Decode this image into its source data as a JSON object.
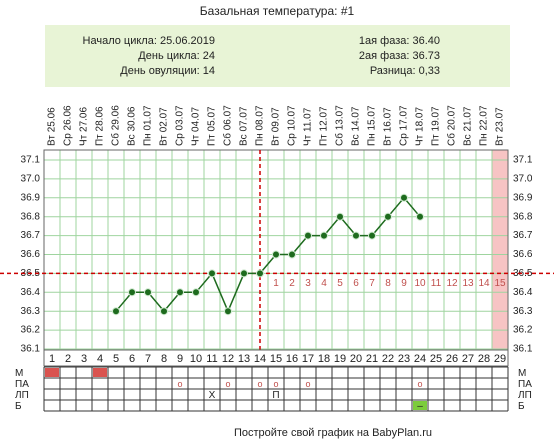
{
  "chart_data": {
    "type": "line",
    "title": "Базальная температура: #1",
    "info_left": [
      "Начало цикла: 25.06.2019",
      "День цикла: 24",
      "День овуляции: 14"
    ],
    "info_right": [
      "1ая фаза: 36.40",
      "2ая фаза: 36.73",
      "Разница: 0,33"
    ],
    "dates": [
      "Вт 25.06",
      "Ср 26.06",
      "Чт 27.06",
      "Пт 28.06",
      "Сб 29.06",
      "Вс 30.06",
      "Пн 01.07",
      "Вт 02.07",
      "Ср 03.07",
      "Чт 04.07",
      "Пт 05.07",
      "Сб 06.07",
      "Вс 07.07",
      "Пн 08.07",
      "Вт 09.07",
      "Ср 10.07",
      "Чт 11.07",
      "Пт 12.07",
      "Сб 13.07",
      "Вс 14.07",
      "Пн 15.07",
      "Вт 16.07",
      "Ср 17.07",
      "Чт 18.07",
      "Пт 19.07",
      "Сб 20.07",
      "Вс 21.07",
      "Пн 22.07",
      "Вт 23.07"
    ],
    "days": [
      1,
      2,
      3,
      4,
      5,
      6,
      7,
      8,
      9,
      10,
      11,
      12,
      13,
      14,
      15,
      16,
      17,
      18,
      19,
      20,
      21,
      22,
      23,
      24,
      25,
      26,
      27,
      28,
      29
    ],
    "values": [
      null,
      null,
      null,
      null,
      36.3,
      36.4,
      36.4,
      36.3,
      36.4,
      36.4,
      36.5,
      36.3,
      36.5,
      36.5,
      36.6,
      36.6,
      36.7,
      36.7,
      36.8,
      36.7,
      36.7,
      36.8,
      36.9,
      36.8,
      null,
      null,
      null,
      null,
      null
    ],
    "color": "#1e6b1e",
    "ylim": [
      36.1,
      37.1
    ],
    "yticks": [
      36.1,
      36.2,
      36.3,
      36.4,
      36.5,
      36.6,
      36.7,
      36.8,
      36.9,
      {
        "value": 37,
        "label": "37.0"
      },
      37.1
    ],
    "grid": true,
    "coverline": 36.5,
    "ovulation_day": 14,
    "phase2_days": [
      1,
      2,
      3,
      4,
      5,
      6,
      7,
      8,
      9,
      10,
      11,
      12,
      13,
      14,
      15
    ],
    "shaded_day": 29,
    "rows": [
      {
        "label": "М",
        "fill": "#d9534f",
        "filled": [
          1,
          4
        ]
      },
      {
        "label": "ПА",
        "cells": [
          null,
          null,
          null,
          null,
          null,
          null,
          null,
          null,
          "o",
          null,
          null,
          "o",
          null,
          "o",
          "o",
          null,
          "o",
          null,
          null,
          null,
          null,
          null,
          null,
          "o",
          null,
          null,
          null,
          null,
          null
        ]
      },
      {
        "label": "ЛП",
        "cells": [
          null,
          null,
          null,
          null,
          null,
          null,
          null,
          null,
          null,
          null,
          "Х",
          null,
          null,
          null,
          "П",
          null,
          null,
          null,
          null,
          null,
          null,
          null,
          null,
          null,
          null,
          null,
          null,
          null,
          null
        ]
      },
      {
        "label": "Б",
        "fill": "#7ccc3c",
        "filled": [
          24
        ],
        "cells": [
          null,
          null,
          null,
          null,
          null,
          null,
          null,
          null,
          null,
          null,
          null,
          null,
          null,
          null,
          null,
          null,
          null,
          null,
          null,
          null,
          null,
          null,
          null,
          "–",
          null,
          null,
          null,
          null,
          null
        ]
      }
    ],
    "footer": "Постройте свой график на BabyPlan.ru"
  }
}
